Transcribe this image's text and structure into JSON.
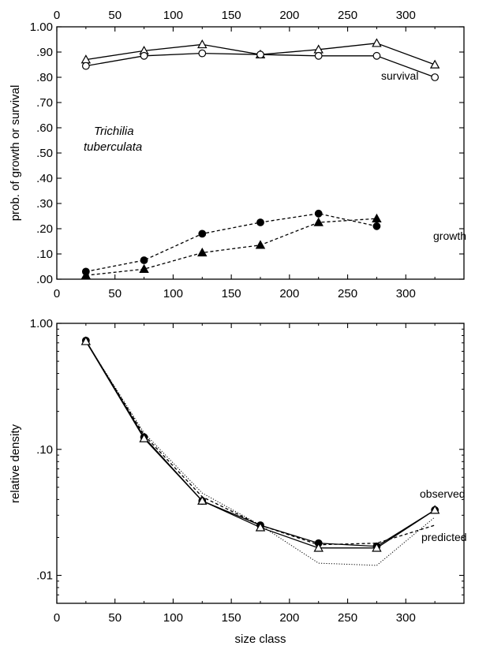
{
  "chart_data": [
    {
      "type": "line",
      "ylabel": "prob. of growth or survival",
      "species_label": [
        "Trichilia",
        "tuberculata"
      ],
      "xlim": [
        0,
        350
      ],
      "ylim": [
        0,
        1.0
      ],
      "x_ticks": [
        0,
        50,
        100,
        150,
        200,
        250,
        300
      ],
      "x_tick_labels": [
        "0",
        "50",
        "100",
        "150",
        "200",
        "250",
        "300"
      ],
      "y_ticks": [
        0,
        0.1,
        0.2,
        0.3,
        0.4,
        0.5,
        0.6,
        0.7,
        0.8,
        0.9,
        1.0
      ],
      "y_tick_labels": [
        ".00",
        ".10",
        ".20",
        ".30",
        ".40",
        ".50",
        ".60",
        ".70",
        ".80",
        ".90",
        "1.00"
      ],
      "annotations": {
        "survival": "survival",
        "growth": "growth"
      },
      "series": [
        {
          "group": "survival",
          "marker": "open-triangle",
          "line": "solid",
          "x": [
            25,
            75,
            125,
            175,
            225,
            275,
            325
          ],
          "y": [
            0.87,
            0.905,
            0.93,
            0.89,
            0.91,
            0.935,
            0.85
          ]
        },
        {
          "group": "survival",
          "marker": "open-circle",
          "line": "solid",
          "x": [
            25,
            75,
            125,
            175,
            225,
            275,
            325
          ],
          "y": [
            0.845,
            0.885,
            0.895,
            0.89,
            0.885,
            0.885,
            0.8
          ]
        },
        {
          "group": "growth",
          "marker": "filled-circle",
          "line": "dashed",
          "x": [
            25,
            75,
            125,
            175,
            225,
            275
          ],
          "y": [
            0.03,
            0.075,
            0.18,
            0.225,
            0.26,
            0.21
          ]
        },
        {
          "group": "growth",
          "marker": "filled-triangle",
          "line": "dashed",
          "x": [
            25,
            75,
            125,
            175,
            225,
            275
          ],
          "y": [
            0.015,
            0.04,
            0.105,
            0.135,
            0.225,
            0.24
          ]
        }
      ]
    },
    {
      "type": "line",
      "xlabel": "size class",
      "ylabel": "relative density",
      "xlim": [
        0,
        350
      ],
      "yscale": "log",
      "ylim": [
        0.006,
        1.0
      ],
      "x_ticks": [
        0,
        50,
        100,
        150,
        200,
        250,
        300
      ],
      "x_tick_labels": [
        "0",
        "50",
        "100",
        "150",
        "200",
        "250",
        "300"
      ],
      "y_ticks": [
        0.01,
        0.1,
        1.0
      ],
      "y_tick_labels": [
        ".01",
        ".10",
        "1.00"
      ],
      "annotations": {
        "observed": "observed",
        "predicted": "predicted"
      },
      "series": [
        {
          "group": "observed",
          "marker": "filled-circle",
          "line": "solid",
          "x": [
            25,
            75,
            125,
            175,
            225,
            275,
            325
          ],
          "y": [
            0.73,
            0.125,
            0.039,
            0.025,
            0.018,
            0.017,
            0.033
          ]
        },
        {
          "group": "observed",
          "marker": "open-triangle",
          "line": "solid",
          "x": [
            25,
            75,
            125,
            175,
            225,
            275,
            325
          ],
          "y": [
            0.72,
            0.122,
            0.039,
            0.024,
            0.0165,
            0.0165,
            0.033
          ]
        },
        {
          "group": "predicted",
          "marker": "none",
          "line": "dashed",
          "x": [
            25,
            75,
            125,
            175,
            225,
            275,
            325
          ],
          "y": [
            0.72,
            0.13,
            0.042,
            0.025,
            0.0175,
            0.018,
            0.025
          ]
        },
        {
          "group": "predicted",
          "marker": "none",
          "line": "dotted",
          "x": [
            25,
            75,
            125,
            175,
            225,
            275,
            325
          ],
          "y": [
            0.72,
            0.135,
            0.045,
            0.025,
            0.0125,
            0.012,
            0.029
          ]
        }
      ]
    }
  ]
}
